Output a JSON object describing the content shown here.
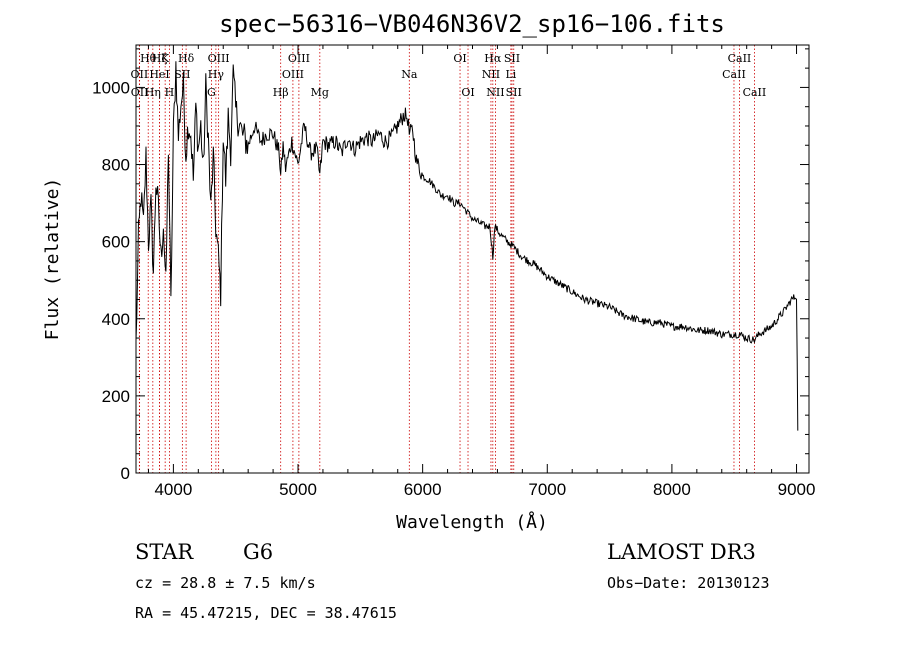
{
  "chart_data": {
    "type": "line",
    "title": "spec−56316−VB046N36V2_sp16−106.fits",
    "xlabel": "Wavelength (Å)",
    "ylabel": "Flux (relative)",
    "xlim": [
      3700,
      9100
    ],
    "ylim": [
      0,
      1110
    ],
    "xticks": [
      4000,
      5000,
      6000,
      7000,
      8000,
      9000
    ],
    "yticks": [
      0,
      200,
      400,
      600,
      800,
      1000
    ],
    "series": [
      {
        "name": "flux",
        "x": [
          3700,
          3720,
          3740,
          3760,
          3780,
          3800,
          3820,
          3840,
          3860,
          3880,
          3900,
          3920,
          3940,
          3960,
          3980,
          4000,
          4020,
          4040,
          4060,
          4080,
          4100,
          4120,
          4140,
          4160,
          4180,
          4200,
          4220,
          4240,
          4260,
          4280,
          4300,
          4320,
          4340,
          4360,
          4380,
          4400,
          4420,
          4440,
          4460,
          4480,
          4500,
          4550,
          4600,
          4650,
          4700,
          4750,
          4800,
          4850,
          4861,
          4880,
          4900,
          4950,
          5000,
          5050,
          5100,
          5150,
          5175,
          5200,
          5250,
          5300,
          5350,
          5400,
          5450,
          5500,
          5550,
          5600,
          5650,
          5700,
          5750,
          5800,
          5850,
          5880,
          5893,
          5920,
          5950,
          6000,
          6050,
          6100,
          6150,
          6200,
          6250,
          6300,
          6350,
          6400,
          6450,
          6500,
          6540,
          6563,
          6580,
          6620,
          6680,
          6720,
          6800,
          6900,
          7000,
          7100,
          7200,
          7300,
          7400,
          7500,
          7600,
          7700,
          7800,
          7900,
          8000,
          8100,
          8200,
          8300,
          8400,
          8498,
          8542,
          8600,
          8662,
          8700,
          8800,
          8900,
          8960,
          9000,
          9010
        ],
        "values": [
          330,
          610,
          720,
          640,
          820,
          600,
          690,
          520,
          760,
          680,
          560,
          650,
          480,
          850,
          430,
          880,
          1060,
          870,
          960,
          1000,
          830,
          910,
          880,
          760,
          950,
          840,
          900,
          780,
          1000,
          870,
          680,
          820,
          640,
          560,
          470,
          880,
          760,
          920,
          840,
          1030,
          940,
          880,
          850,
          900,
          860,
          880,
          880,
          830,
          770,
          850,
          790,
          860,
          800,
          900,
          830,
          840,
          770,
          860,
          850,
          860,
          830,
          870,
          840,
          860,
          870,
          860,
          880,
          860,
          870,
          900,
          930,
          920,
          880,
          890,
          810,
          770,
          760,
          740,
          720,
          720,
          700,
          700,
          680,
          660,
          650,
          640,
          640,
          560,
          640,
          620,
          600,
          590,
          560,
          540,
          510,
          490,
          470,
          450,
          440,
          430,
          410,
          400,
          390,
          390,
          380,
          380,
          370,
          370,
          360,
          360,
          360,
          350,
          345,
          360,
          380,
          420,
          450,
          460,
          110
        ]
      }
    ],
    "lines": [
      {
        "label": "Hθ",
        "x": 3798,
        "row": 0
      },
      {
        "label": "OII",
        "x": 3727,
        "row": 1
      },
      {
        "label": "OII",
        "x": 3729,
        "row": 2
      },
      {
        "label": "Hη",
        "x": 3835,
        "row": 2
      },
      {
        "label": "HeI",
        "x": 3889,
        "row": 1
      },
      {
        "label": "H",
        "x": 3968,
        "row": 2
      },
      {
        "label": "K",
        "x": 3934,
        "row": 0
      },
      {
        "label": "Hζ",
        "x": 3889,
        "row": 0
      },
      {
        "label": "SII",
        "x": 4072,
        "row": 1
      },
      {
        "label": "Hδ",
        "x": 4102,
        "row": 0
      },
      {
        "label": "OIII",
        "x": 4363,
        "row": 0
      },
      {
        "label": "Hγ",
        "x": 4341,
        "row": 1
      },
      {
        "label": "G",
        "x": 4305,
        "row": 2
      },
      {
        "label": "Hβ",
        "x": 4861,
        "row": 3
      },
      {
        "label": "OIII",
        "x": 5007,
        "row": 0
      },
      {
        "label": "OIII",
        "x": 4959,
        "row": 1
      },
      {
        "label": "Mg",
        "x": 5175,
        "row": 3
      },
      {
        "label": "Na",
        "x": 5893,
        "row": 1
      },
      {
        "label": "OI",
        "x": 6300,
        "row": 0
      },
      {
        "label": "OI",
        "x": 6364,
        "row": 2
      },
      {
        "label": "Hα",
        "x": 6563,
        "row": 0
      },
      {
        "label": "NII",
        "x": 6548,
        "row": 1
      },
      {
        "label": "NII",
        "x": 6584,
        "row": 2
      },
      {
        "label": "SII",
        "x": 6717,
        "row": 0
      },
      {
        "label": "SII",
        "x": 6731,
        "row": 2
      },
      {
        "label": "Li",
        "x": 6708,
        "row": 1
      },
      {
        "label": "CaII",
        "x": 8542,
        "row": 0
      },
      {
        "label": "CaII",
        "x": 8498,
        "row": 1
      },
      {
        "label": "CaII",
        "x": 8662,
        "row": 2
      }
    ],
    "colors": {
      "line": "#000000",
      "marker": "#cc0000"
    }
  },
  "info": {
    "type_label": "STAR",
    "subclass": "G6",
    "survey": "LAMOST DR3",
    "cz": "cz = 28.8 ± 7.5 km/s",
    "obs_date": "Obs−Date: 20130123",
    "coords": "RA =  45.47215, DEC =  38.47615"
  }
}
